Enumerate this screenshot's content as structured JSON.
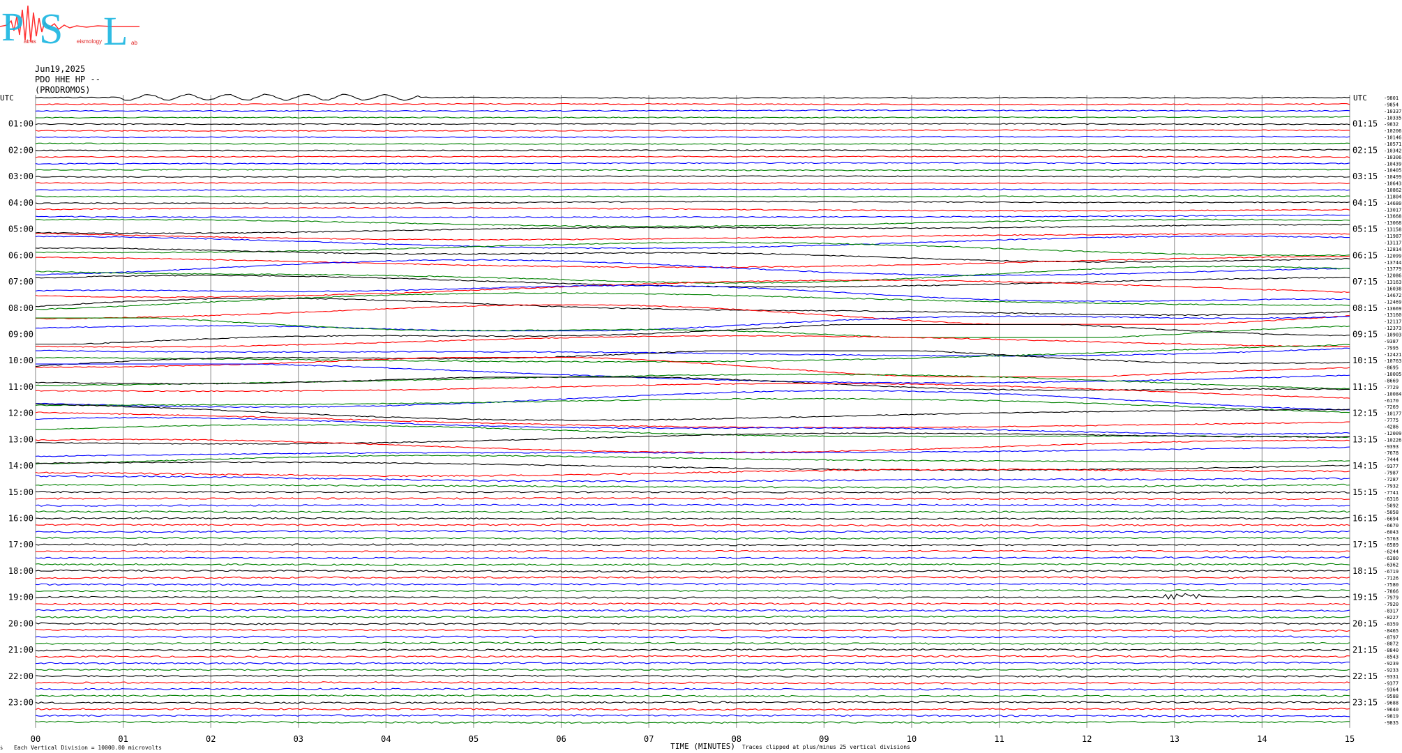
{
  "header": {
    "logo_letters": "PSL",
    "logo_text": "Patras Seismology Lab",
    "date": "Jun19,2025",
    "station": "PDO HHE HP --",
    "location": "(PRODROMOS)"
  },
  "footer": {
    "corner_mark": "ṡ",
    "scale_note": "Each Vertical Division = 10000.00 microvolts",
    "clip_note": "Traces clipped at plus/minus 25 vertical divisions"
  },
  "chart_data": {
    "type": "line",
    "title": "",
    "xlabel": "TIME (MINUTES)",
    "ylabel": "",
    "xlim": [
      0,
      15
    ],
    "x_ticks": [
      "00",
      "01",
      "02",
      "03",
      "04",
      "05",
      "06",
      "07",
      "08",
      "09",
      "10",
      "11",
      "12",
      "13",
      "14",
      "15"
    ],
    "left_axis_title": "UTC",
    "right_axis_title": "UTC",
    "left_labels": [
      "01:00",
      "02:00",
      "03:00",
      "04:00",
      "05:00",
      "06:00",
      "07:00",
      "08:00",
      "09:00",
      "10:00",
      "11:00",
      "12:00",
      "13:00",
      "14:00",
      "15:00",
      "16:00",
      "17:00",
      "18:00",
      "19:00",
      "20:00",
      "21:00",
      "22:00",
      "23:00"
    ],
    "right_labels": [
      "01:15",
      "02:15",
      "03:15",
      "04:15",
      "05:15",
      "06:15",
      "07:15",
      "08:15",
      "09:15",
      "10:15",
      "11:15",
      "12:15",
      "13:15",
      "14:15",
      "15:15",
      "16:15",
      "17:15",
      "18:15",
      "19:15",
      "20:15",
      "21:15",
      "22:15",
      "23:15"
    ],
    "trace_colors": [
      "#000000",
      "#ff0000",
      "#0000ff",
      "#008000"
    ],
    "grid": "vertical",
    "trace_count": 96,
    "trace_offsets": [
      -9801,
      -9854,
      -10337,
      -10335,
      -9832,
      -10206,
      -10146,
      -10571,
      -10342,
      -10306,
      -10439,
      -10405,
      -10499,
      -10643,
      -10862,
      -11804,
      -14680,
      -13017,
      -13668,
      -13068,
      -13158,
      -11987,
      -13117,
      -12814,
      -12099,
      -13744,
      -13779,
      -12086,
      -13163,
      -16038,
      -14672,
      -12469,
      -13669,
      -13160,
      -12117,
      -12373,
      -10903,
      -9387,
      -7995,
      -12421,
      -10763,
      -8695,
      -10005,
      -8669,
      -7729,
      -10084,
      -6170,
      -7269,
      -10177,
      -7775,
      -4286,
      -12009,
      -10226,
      -9393,
      -7678,
      -7444,
      -9377,
      -7987,
      -7287,
      -7932,
      -7741,
      -6316,
      -5092,
      -5058,
      -6694,
      -6670,
      -6043,
      -5763,
      -6589,
      -6244,
      -6380,
      -6362,
      -6719,
      -7126,
      -7580,
      -7866,
      -7979,
      -7920,
      -8317,
      -8227,
      -8359,
      -8465,
      -8797,
      -8072,
      -8840,
      -8543,
      -9239,
      -9233,
      -9331,
      -9377,
      -9364,
      -9588,
      -9688,
      -9640,
      -9819,
      -9835
    ]
  }
}
